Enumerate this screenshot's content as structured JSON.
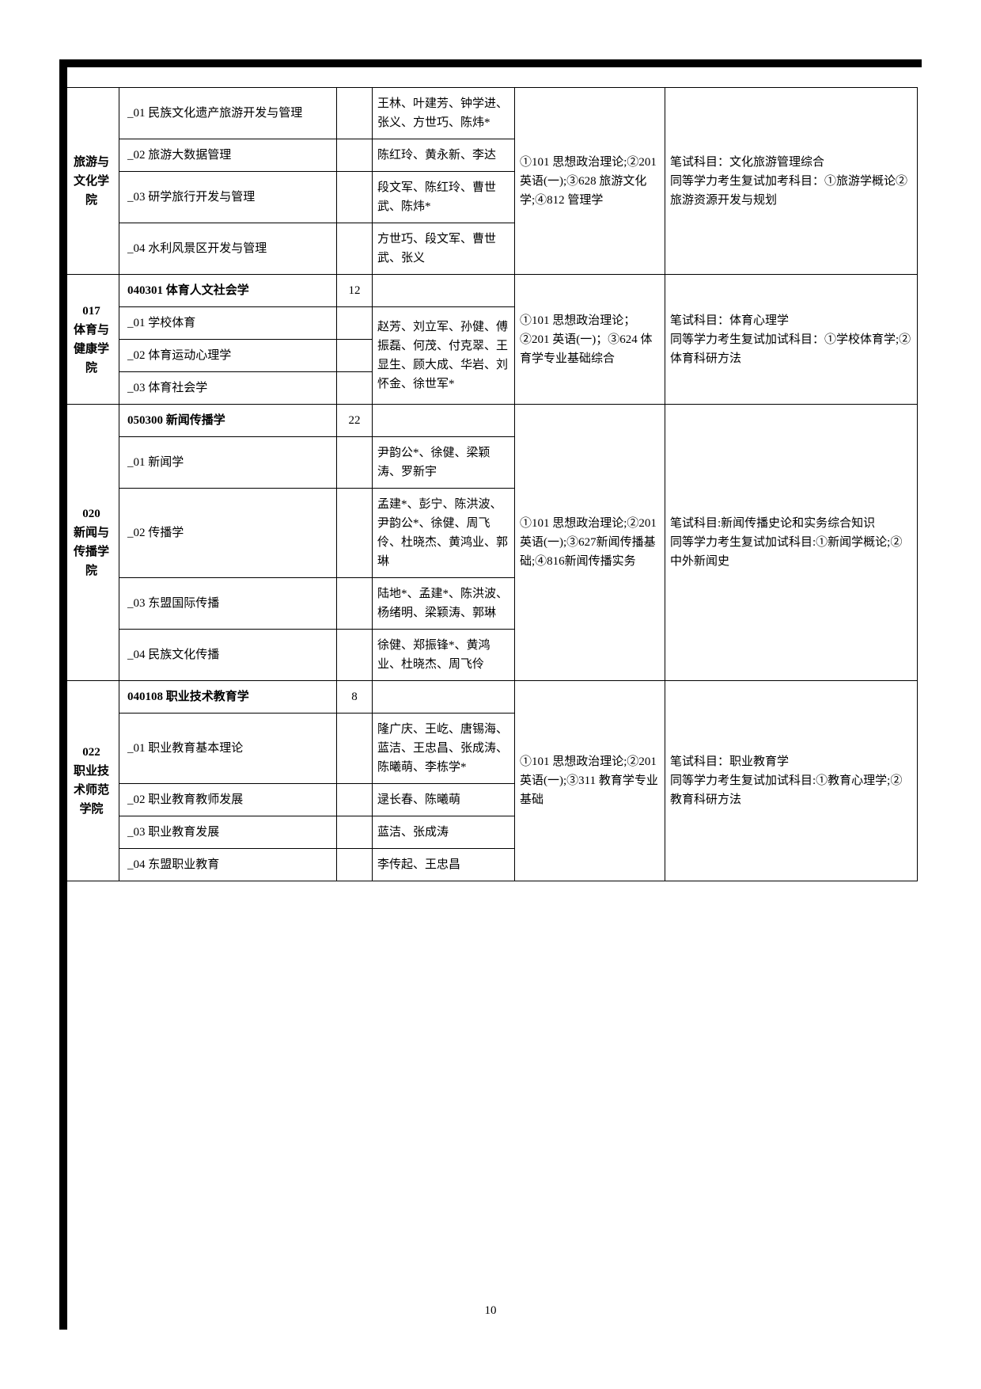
{
  "pageNumber": "10",
  "departments": [
    {
      "name": "旅游与文化学院",
      "exam": "①101 思想政治理论;②201 英语(一);③628 旅游文化学;④812 管理学",
      "notes": "笔试科目：文化旅游管理综合\n同等学力考生复试加考科目：①旅游学概论②旅游资源开发与规划",
      "rows": [
        {
          "direction": "_01 民族文化遗产旅游开发与管理",
          "num": "",
          "advisors": "王林、叶建芳、钟学进、张义、方世巧、陈炜*"
        },
        {
          "direction": "_02 旅游大数据管理",
          "num": "",
          "advisors": "陈红玲、黄永新、李达"
        },
        {
          "direction": "_03 研学旅行开发与管理",
          "num": "",
          "advisors": "段文军、陈红玲、曹世武、陈炜*"
        },
        {
          "direction": "_04 水利风景区开发与管理",
          "num": "",
          "advisors": "方世巧、段文军、曹世武、张义"
        }
      ]
    },
    {
      "name": "017\n体育与健康学院",
      "exam": "①101 思想政治理论；②201 英语(一)；③624 体育学专业基础综合",
      "notes": "笔试科目：体育心理学\n同等学力考生复试加试科目：①学校体育学;②体育科研方法",
      "rows": [
        {
          "direction": "040301 体育人文社会学",
          "num": "12",
          "advisors": "",
          "bold": true
        },
        {
          "direction": "_01 学校体育",
          "num": "",
          "advisors": "赵芳、刘立军、孙健、傅振磊、何茂、付克翠、王显生、顾大成、华岩、刘怀金、徐世军*",
          "span": 3
        },
        {
          "direction": "_02 体育运动心理学",
          "num": "",
          "advisors": ""
        },
        {
          "direction": "_03 体育社会学",
          "num": "",
          "advisors": ""
        }
      ]
    },
    {
      "name": "020\n新闻与传播学院",
      "exam": "①101 思想政治理论;②201 英语(一);③627新闻传播基础;④816新闻传播实务",
      "notes": "笔试科目:新闻传播史论和实务综合知识\n同等学力考生复试加试科目:①新闻学概论;②中外新闻史",
      "rows": [
        {
          "direction": "050300 新闻传播学",
          "num": "22",
          "advisors": "",
          "bold": true
        },
        {
          "direction": "_01 新闻学",
          "num": "",
          "advisors": "尹韵公*、徐健、梁颖涛、罗新宇"
        },
        {
          "direction": "_02 传播学",
          "num": "",
          "advisors": "孟建*、彭宁、陈洪波、尹韵公*、徐健、周飞伶、杜晓杰、黄鸿业、郭琳"
        },
        {
          "direction": "_03 东盟国际传播",
          "num": "",
          "advisors": "陆地*、孟建*、陈洪波、杨绪明、梁颖涛、郭琳"
        },
        {
          "direction": "_04 民族文化传播",
          "num": "",
          "advisors": "徐健、郑振锋*、黄鸿业、杜晓杰、周飞伶"
        }
      ]
    },
    {
      "name": "022\n职业技术师范学院",
      "exam": "①101 思想政治理论;②201 英语(一);③311 教育学专业基础",
      "notes": "笔试科目：职业教育学\n同等学力考生复试加试科目:①教育心理学;②教育科研方法",
      "rows": [
        {
          "direction": "040108 职业技术教育学",
          "num": "8",
          "advisors": "",
          "bold": true
        },
        {
          "direction": "_01 职业教育基本理论",
          "num": "",
          "advisors": "隆广庆、王屹、唐锡海、蓝洁、王忠昌、张成涛、陈曦萌、李栋学*"
        },
        {
          "direction": "_02 职业教育教师发展",
          "num": "",
          "advisors": "逯长春、陈曦萌"
        },
        {
          "direction": "_03 职业教育发展",
          "num": "",
          "advisors": "蓝洁、张成涛"
        },
        {
          "direction": "_04 东盟职业教育",
          "num": "",
          "advisors": "李传起、王忠昌"
        }
      ]
    }
  ]
}
